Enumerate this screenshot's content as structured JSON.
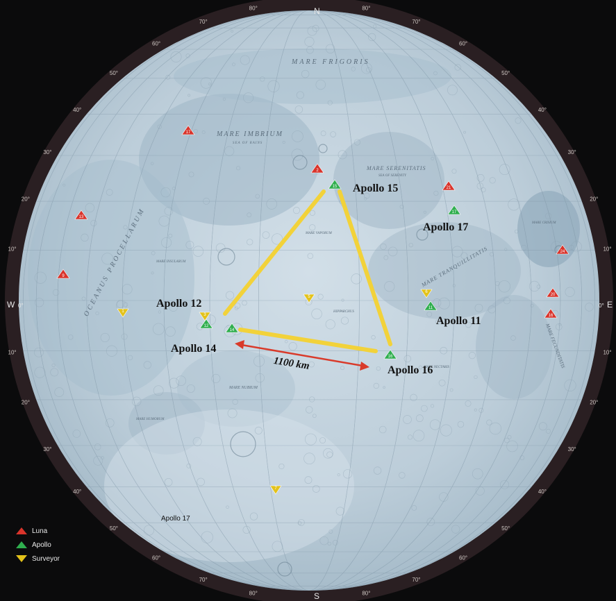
{
  "compass": {
    "north": "N",
    "south": "S",
    "west": "W",
    "east": "E"
  },
  "west_deg": "0°",
  "east_deg": "0°",
  "regions": {
    "mare_frigoris": "MARE FRIGORIS",
    "mare_imbrium": "MARE IMBRIUM",
    "mare_imbrium_sub": "SEA OF RAINS",
    "mare_serenitatis": "MARE SERENITATIS",
    "mare_serenitatis_sub": "SEA OF SERENITY",
    "oceanus_procellarum": "OCEANUS PROCELLARUM",
    "mare_tranquillitatis": "MARE TRANQUILLITATIS",
    "mare_vaporum": "MARE VAPORUM",
    "mare_crisium": "MARE CRISIUM",
    "mare_humorum": "MARE HUMORUM",
    "mare_nubium": "MARE NUBIUM",
    "mare_fecunditatis": "MARE FECUNDITATIS",
    "mare_nectaris": "MARE NECTARIS",
    "mare_insularum": "MARE INSULARUM",
    "hipparchus": "HIPPARCHUS"
  },
  "apollo_labels": {
    "apollo11": "Apollo 11",
    "apollo12": "Apollo 12",
    "apollo14": "Apollo 14",
    "apollo15": "Apollo 15",
    "apollo16": "Apollo 16",
    "apollo17": "Apollo 17",
    "apollo17_small": "Apollo 17"
  },
  "distance_label": "1100 km",
  "markers": {
    "luna": [
      "2",
      "17",
      "13",
      "9",
      "21",
      "24",
      "20",
      "16"
    ],
    "apollo": [
      "15",
      "17",
      "11",
      "12",
      "14",
      "16"
    ],
    "surveyor": [
      "1",
      "3",
      "6",
      "5",
      "7"
    ]
  },
  "legend": {
    "luna": "Luna",
    "apollo": "Apollo",
    "surveyor": "Surveyor"
  },
  "colors": {
    "luna": "#d9342b",
    "apollo": "#2fae4e",
    "surveyor": "#e3c21a",
    "triangle": "#f2d23a",
    "distance_arrow": "#d93a2a",
    "moon": "#c3d3de",
    "mare": "#9fb6c6"
  },
  "grid_labels": {
    "lat_north": [
      "10°",
      "20°",
      "30°",
      "40°",
      "50°",
      "60°",
      "70°",
      "80°"
    ],
    "lat_south": [
      "10°",
      "20°",
      "30°",
      "40°",
      "50°",
      "60°",
      "70°",
      "80°"
    ]
  }
}
